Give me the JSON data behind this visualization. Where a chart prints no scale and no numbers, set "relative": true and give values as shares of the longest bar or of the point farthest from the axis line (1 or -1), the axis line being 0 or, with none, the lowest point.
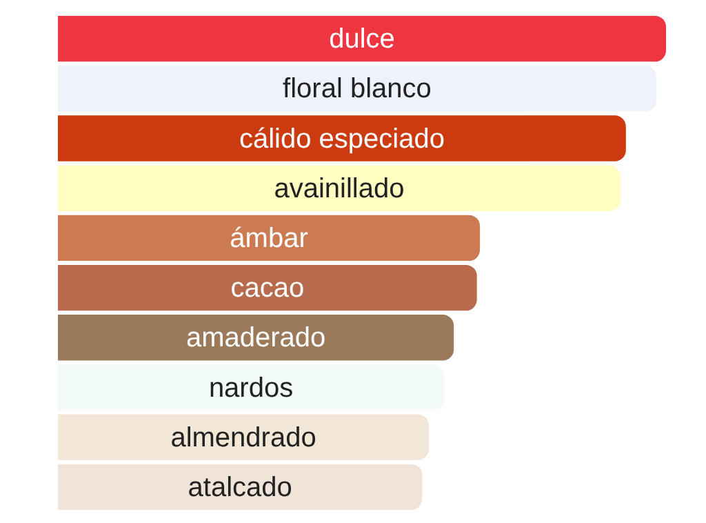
{
  "chart_data": {
    "type": "bar",
    "orientation": "horizontal",
    "relative": true,
    "categories": [
      "dulce",
      "floral blanco",
      "cálido especiado",
      "avainillado",
      "ámbar",
      "cacao",
      "amaderado",
      "nardos",
      "almendrado",
      "atalcado"
    ],
    "values": [
      1,
      0.984,
      0.934,
      0.925,
      0.694,
      0.689,
      0.651,
      0.635,
      0.61,
      0.599
    ],
    "colors": [
      "#ee3540",
      "#eef2fb",
      "#cc3a10",
      "#fffdc0",
      "#cc7a52",
      "#b86a4c",
      "#9a7a5a",
      "#f2fbf5",
      "#f3e8d8",
      "#f0e4d8"
    ],
    "legend": false
  }
}
